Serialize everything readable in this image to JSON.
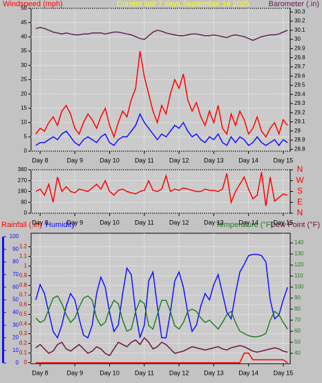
{
  "chart_data": [
    {
      "type": "line",
      "title": "Current last 7 days September 14 2025",
      "x": [
        7.875,
        8,
        8.125,
        8.25,
        8.375,
        8.5,
        8.625,
        8.75,
        8.875,
        9,
        9.125,
        9.25,
        9.375,
        9.5,
        9.625,
        9.75,
        9.875,
        10,
        10.125,
        10.25,
        10.375,
        10.5,
        10.625,
        10.75,
        10.875,
        11,
        11.125,
        11.25,
        11.375,
        11.5,
        11.625,
        11.75,
        11.875,
        12,
        12.125,
        12.25,
        12.375,
        12.5,
        12.625,
        12.75,
        12.875,
        13,
        13.125,
        13.25,
        13.375,
        13.5,
        13.625,
        13.75,
        13.875,
        14,
        14.125,
        14.25,
        14.375,
        14.5,
        14.625,
        14.75,
        14.875,
        15,
        15.125
      ],
      "xlim": [
        7.74,
        15.2
      ],
      "xticks": [
        {
          "value": 8,
          "label": "Day 8"
        },
        {
          "value": 9,
          "label": "Day 9"
        },
        {
          "value": 10,
          "label": "Day 10"
        },
        {
          "value": 11,
          "label": "Day 11"
        },
        {
          "value": 12,
          "label": "Day 12"
        },
        {
          "value": 13,
          "label": "Day 13"
        },
        {
          "value": 14,
          "label": "Day 14"
        },
        {
          "value": 15,
          "label": "Day 15"
        }
      ],
      "ylim": [
        0,
        50
      ],
      "yticks": [
        0,
        5,
        10,
        15,
        20,
        25,
        30,
        35,
        40,
        45,
        50
      ],
      "y2lim": [
        28.78,
        30.34
      ],
      "y2ticks": [
        28.8,
        28.9,
        29,
        29.1,
        29.2,
        29.3,
        29.4,
        29.5,
        29.6,
        29.7,
        29.8,
        29.9,
        30,
        30.1,
        30.2,
        30.3
      ],
      "grid": true,
      "series": [
        {
          "name": "Windspeed (mph)",
          "color": "#ff0000",
          "values": [
            6,
            8,
            7,
            10,
            12,
            9,
            14,
            16,
            13,
            8,
            6,
            10,
            13,
            11,
            8,
            12,
            15,
            9,
            5,
            10,
            14,
            12,
            18,
            22,
            35,
            26,
            20,
            14,
            10,
            16,
            13,
            20,
            25,
            22,
            27,
            18,
            14,
            17,
            12,
            9,
            14,
            10,
            16,
            8,
            6,
            13,
            9,
            14,
            11,
            6,
            8,
            12,
            7,
            5,
            8,
            10,
            6,
            11,
            9
          ]
        },
        {
          "color": "#1010ff",
          "values": [
            2,
            3,
            3,
            4,
            5,
            4,
            6,
            7,
            5,
            3,
            2,
            4,
            5,
            4,
            3,
            5,
            6,
            3,
            2,
            4,
            5,
            5,
            7,
            9,
            13,
            10,
            8,
            6,
            4,
            6,
            5,
            7,
            9,
            8,
            10,
            7,
            5,
            6,
            4,
            3,
            5,
            4,
            6,
            3,
            2,
            5,
            3,
            5,
            4,
            2,
            3,
            5,
            3,
            2,
            3,
            4,
            2,
            4,
            3
          ]
        },
        {
          "name": "Barometer (.in)",
          "color": "#602050",
          "axis": "y2",
          "values": [
            30.12,
            30.13,
            30.12,
            30.1,
            30.08,
            30.07,
            30.06,
            30.07,
            30.06,
            30.05,
            30.05,
            30.06,
            30.06,
            30.07,
            30.07,
            30.07,
            30.06,
            30.07,
            30.08,
            30.08,
            30.07,
            30.06,
            30.05,
            30.03,
            30.01,
            30.0,
            30.04,
            30.08,
            30.1,
            30.09,
            30.07,
            30.06,
            30.05,
            30.04,
            30.04,
            30.05,
            30.06,
            30.06,
            30.05,
            30.04,
            30.04,
            30.05,
            30.04,
            30.03,
            30.02,
            30.04,
            30.05,
            30.04,
            30.03,
            30.01,
            29.99,
            30.01,
            30.03,
            30.04,
            30.05,
            30.05,
            30.06,
            30.08,
            30.1
          ]
        }
      ]
    },
    {
      "type": "line",
      "x": [
        7.875,
        8,
        8.125,
        8.25,
        8.375,
        8.5,
        8.625,
        8.75,
        8.875,
        9,
        9.125,
        9.25,
        9.375,
        9.5,
        9.625,
        9.75,
        9.875,
        10,
        10.125,
        10.25,
        10.375,
        10.5,
        10.625,
        10.75,
        10.875,
        11,
        11.125,
        11.25,
        11.375,
        11.5,
        11.625,
        11.75,
        11.875,
        12,
        12.125,
        12.25,
        12.375,
        12.5,
        12.625,
        12.75,
        12.875,
        13,
        13.125,
        13.25,
        13.375,
        13.5,
        13.625,
        13.75,
        13.875,
        14,
        14.125,
        14.25,
        14.375,
        14.5,
        14.625,
        14.75,
        14.875,
        15,
        15.125
      ],
      "xlim": [
        7.74,
        15.2
      ],
      "xticks": [
        {
          "value": 8,
          "label": "Day 8"
        },
        {
          "value": 9,
          "label": "Day 9"
        },
        {
          "value": 10,
          "label": "Day 10"
        },
        {
          "value": 11,
          "label": "Day 11"
        },
        {
          "value": 12,
          "label": "Day 12"
        },
        {
          "value": 13,
          "label": "Day 13"
        },
        {
          "value": 14,
          "label": "Day 14"
        },
        {
          "value": 15,
          "label": "Day 15"
        }
      ],
      "ylim": [
        0,
        360
      ],
      "yticks": [
        0,
        90,
        180,
        270,
        360
      ],
      "y2lim": [
        0,
        360
      ],
      "y2ticks": [
        {
          "value": 0,
          "label": "N"
        },
        {
          "value": 90,
          "label": "E"
        },
        {
          "value": 180,
          "label": "S"
        },
        {
          "value": 270,
          "label": "W"
        },
        {
          "value": 360,
          "label": "N"
        }
      ],
      "grid": true,
      "series": [
        {
          "color": "#ff0000",
          "values": [
            180,
            200,
            150,
            240,
            90,
            300,
            180,
            220,
            180,
            170,
            200,
            190,
            180,
            210,
            240,
            200,
            270,
            180,
            150,
            190,
            200,
            180,
            170,
            160,
            180,
            190,
            270,
            190,
            180,
            200,
            310,
            180,
            200,
            190,
            210,
            200,
            190,
            180,
            180,
            200,
            190,
            190,
            180,
            200,
            330,
            90,
            180,
            240,
            300,
            200,
            120,
            150,
            340,
            60,
            300,
            100,
            130,
            160,
            150
          ]
        }
      ]
    },
    {
      "type": "line",
      "x": [
        7.875,
        8,
        8.125,
        8.25,
        8.375,
        8.5,
        8.625,
        8.75,
        8.875,
        9,
        9.125,
        9.25,
        9.375,
        9.5,
        9.625,
        9.75,
        9.875,
        10,
        10.125,
        10.25,
        10.375,
        10.5,
        10.625,
        10.75,
        10.875,
        11,
        11.125,
        11.25,
        11.375,
        11.5,
        11.625,
        11.75,
        11.875,
        12,
        12.125,
        12.25,
        12.375,
        12.5,
        12.625,
        12.75,
        12.875,
        13,
        13.125,
        13.25,
        13.375,
        13.5,
        13.625,
        13.75,
        13.875,
        14,
        14.125,
        14.25,
        14.375,
        14.5,
        14.625,
        14.75,
        14.875,
        15,
        15.125
      ],
      "xlim": [
        7.74,
        15.2
      ],
      "xticks": [
        {
          "value": 8,
          "label": "Day 8"
        },
        {
          "value": 9,
          "label": "Day 9"
        },
        {
          "value": 10,
          "label": "Day 10"
        },
        {
          "value": 11,
          "label": "Day 11"
        },
        {
          "value": 12,
          "label": "Day 12"
        },
        {
          "value": 13,
          "label": "Day 13"
        },
        {
          "value": 14,
          "label": "Day 14"
        },
        {
          "value": 15,
          "label": "Day 15"
        }
      ],
      "ylim": [
        -0.01,
        1.34
      ],
      "yticks": [
        0,
        0.1,
        0.2,
        0.3,
        0.4,
        0.5,
        0.6,
        0.7,
        0.8,
        0.9,
        1,
        1.1,
        1.2
      ],
      "y2lim": [
        30.6,
        148.8
      ],
      "y2ticks": [
        40,
        50,
        60,
        70,
        80,
        90,
        100,
        110,
        120,
        130,
        140
      ],
      "y3lim": [
        -0.5,
        102.7
      ],
      "y3ticks": [
        0,
        10,
        20,
        30,
        40,
        50,
        60,
        70,
        80,
        90,
        100
      ],
      "grid": true,
      "series": [
        {
          "name": "Rainfall (.in)",
          "color": "#ff0000",
          "values": [
            0,
            0,
            0,
            0,
            0,
            0,
            0,
            0,
            0,
            0,
            0,
            0,
            0,
            0,
            0,
            0,
            0,
            0,
            0,
            0,
            0,
            0,
            0,
            0,
            0,
            0,
            0,
            0,
            0,
            0,
            0,
            0,
            0,
            0,
            0,
            0,
            0,
            0,
            0,
            0,
            0,
            0,
            0,
            0,
            0,
            0,
            0,
            0,
            0.1,
            0.1,
            0.03,
            0.03,
            0.03,
            0.03,
            0.03,
            0.03,
            0.03,
            0.03,
            0
          ]
        },
        {
          "name": "Humidity",
          "color": "#1010ff",
          "axis": "y3",
          "values": [
            50,
            62,
            55,
            40,
            25,
            20,
            30,
            45,
            55,
            50,
            35,
            22,
            20,
            30,
            55,
            68,
            60,
            40,
            25,
            30,
            55,
            75,
            70,
            40,
            20,
            30,
            65,
            72,
            45,
            20,
            20,
            40,
            65,
            72,
            60,
            40,
            25,
            30,
            45,
            55,
            50,
            62,
            70,
            55,
            40,
            35,
            55,
            72,
            78,
            85,
            86,
            86,
            85,
            80,
            50,
            35,
            38,
            50,
            60
          ]
        },
        {
          "name": "Temperature (°F)",
          "color": "#208020",
          "axis": "y2",
          "values": [
            72,
            68,
            70,
            80,
            90,
            92,
            85,
            75,
            68,
            72,
            82,
            90,
            92,
            88,
            72,
            65,
            68,
            80,
            88,
            85,
            70,
            60,
            62,
            78,
            88,
            85,
            65,
            62,
            75,
            88,
            88,
            78,
            65,
            62,
            68,
            78,
            80,
            78,
            72,
            68,
            70,
            66,
            62,
            68,
            75,
            78,
            68,
            60,
            58,
            56,
            55,
            55,
            56,
            58,
            70,
            78,
            75,
            68,
            62
          ]
        },
        {
          "name": "Dew Point (°F)",
          "color": "#701040",
          "axis": "y2",
          "values": [
            45,
            48,
            44,
            40,
            42,
            48,
            50,
            44,
            42,
            45,
            48,
            44,
            40,
            42,
            46,
            44,
            40,
            38,
            44,
            50,
            48,
            46,
            50,
            52,
            48,
            54,
            50,
            44,
            46,
            50,
            48,
            44,
            40,
            41,
            42,
            44,
            46,
            45,
            44,
            43,
            44,
            45,
            46,
            44,
            43,
            45,
            46,
            47,
            46,
            44,
            42,
            41,
            42,
            43,
            44,
            45,
            44,
            42,
            41
          ]
        }
      ]
    }
  ]
}
